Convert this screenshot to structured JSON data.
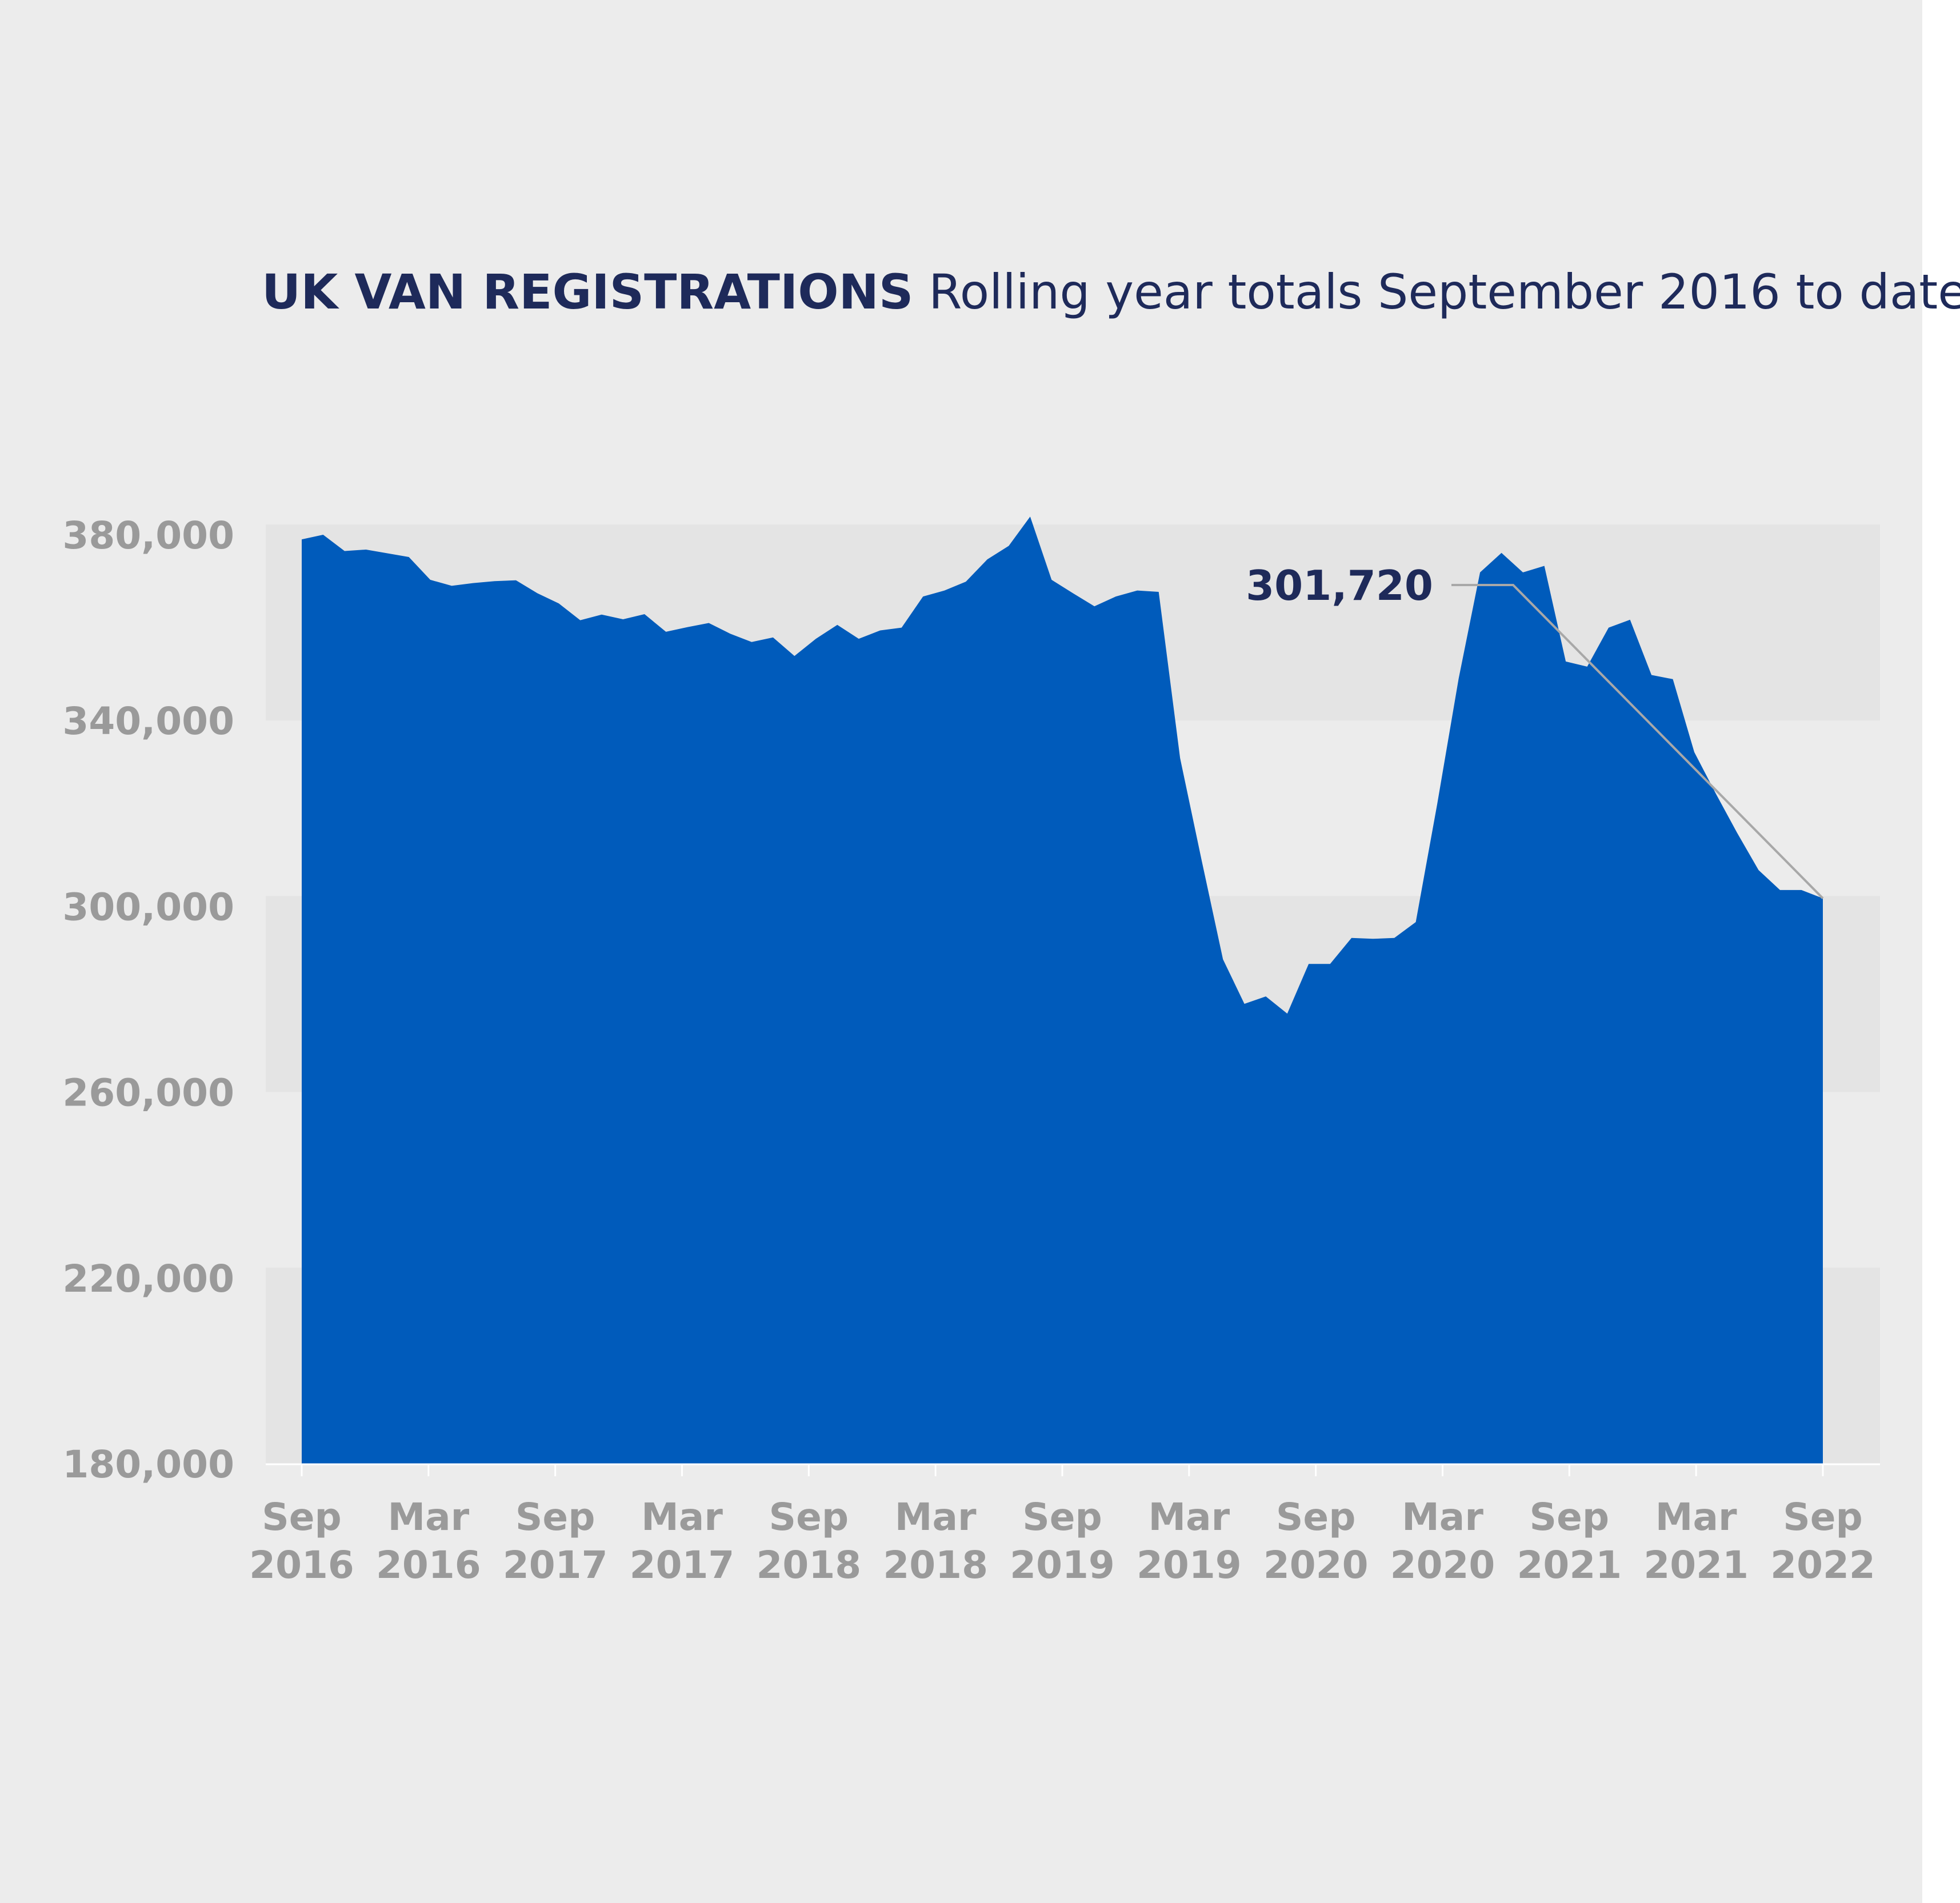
{
  "chart_data": {
    "type": "area",
    "title": "UK VAN REGISTRATIONS",
    "subtitle": "Rolling year totals September 2016 to date",
    "xlabel": "",
    "ylabel": "",
    "ylim": [
      180000,
      380000
    ],
    "yticks": [
      180000,
      220000,
      260000,
      300000,
      340000,
      380000
    ],
    "y_tick_labels": [
      "180,000",
      "220,000",
      "260,000",
      "300,000",
      "340,000",
      "380,000"
    ],
    "x_tick_labels": [
      [
        "Sep",
        "2016"
      ],
      [
        "Mar",
        "2016"
      ],
      [
        "Sep",
        "2017"
      ],
      [
        "Mar",
        "2017"
      ],
      [
        "Sep",
        "2018"
      ],
      [
        "Mar",
        "2018"
      ],
      [
        "Sep",
        "2019"
      ],
      [
        "Mar",
        "2019"
      ],
      [
        "Sep",
        "2020"
      ],
      [
        "Mar",
        "2020"
      ],
      [
        "Sep",
        "2021"
      ],
      [
        "Mar",
        "2021"
      ],
      [
        "Sep",
        "2022"
      ]
    ],
    "grid": "alternating horizontal bands",
    "fill_color": "#005bbb",
    "series": [
      {
        "values": [
          379000,
          380000,
          376500,
          376800,
          376000,
          375200,
          370300,
          369000,
          369600,
          370000,
          370200,
          367400,
          365200,
          361600,
          362800,
          361800,
          362900,
          359100,
          360100,
          361000,
          358700,
          356900,
          357900,
          353900,
          357600,
          360600,
          357600,
          359400,
          360000,
          366700,
          368000,
          369900,
          374700,
          377600,
          383900,
          370300,
          367400,
          364600,
          366700,
          368000,
          367700,
          331900,
          310000,
          288600,
          279000,
          280600,
          276900,
          287600,
          287600,
          293200,
          293000,
          293200,
          296600,
          322000,
          349000,
          371900,
          376100,
          371900,
          373300,
          352700,
          351600,
          360000,
          361700,
          349800,
          348900,
          333200,
          324300,
          315800,
          307800,
          303500,
          303500,
          301720
        ]
      }
    ],
    "annotation": {
      "label": "301,720",
      "value": 301720
    }
  }
}
